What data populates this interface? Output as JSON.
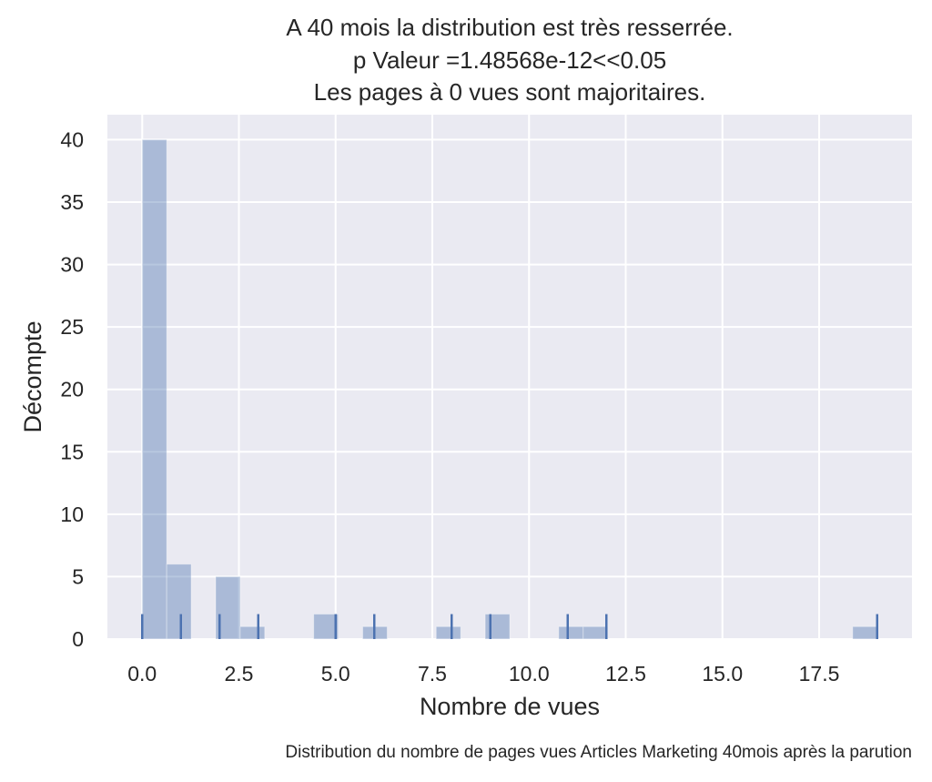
{
  "chart_data": {
    "type": "bar",
    "title_lines": [
      "A 40 mois la distribution est très resserrée.",
      "p Valeur =1.48568e-12<<0.05",
      "Les pages à 0 vues sont majoritaires."
    ],
    "xlabel": "Nombre de vues",
    "ylabel": "Décompte",
    "caption": "Distribution du nombre de pages vues Articles Marketing 40mois après la parution",
    "xlim": [
      -0.9,
      19.9
    ],
    "ylim": [
      0,
      42
    ],
    "xticks": [
      0.0,
      2.5,
      5.0,
      7.5,
      10.0,
      12.5,
      15.0,
      17.5
    ],
    "xtick_labels": [
      "0.0",
      "2.5",
      "5.0",
      "7.5",
      "10.0",
      "12.5",
      "15.0",
      "17.5"
    ],
    "yticks": [
      0,
      5,
      10,
      15,
      20,
      25,
      30,
      35,
      40
    ],
    "ytick_labels": [
      "0",
      "5",
      "10",
      "15",
      "20",
      "25",
      "30",
      "35",
      "40"
    ],
    "bin_width": 0.633,
    "bins": [
      {
        "x0": 0.0,
        "count": 40
      },
      {
        "x0": 0.633,
        "count": 6
      },
      {
        "x0": 1.9,
        "count": 5
      },
      {
        "x0": 2.533,
        "count": 1
      },
      {
        "x0": 4.433,
        "count": 2
      },
      {
        "x0": 5.7,
        "count": 1
      },
      {
        "x0": 7.6,
        "count": 1
      },
      {
        "x0": 8.867,
        "count": 2
      },
      {
        "x0": 10.767,
        "count": 1
      },
      {
        "x0": 11.4,
        "count": 1
      },
      {
        "x0": 18.367,
        "count": 1
      }
    ],
    "rug": [
      0,
      1,
      2,
      3,
      5,
      6,
      8,
      9,
      11,
      12,
      19
    ],
    "rug_height": 2,
    "grid": true,
    "colors": {
      "background": "#eaeaf2",
      "grid": "#ffffff",
      "bar": "#4c72b0",
      "bar_alpha": 0.4,
      "rug": "#4c72b0"
    }
  }
}
